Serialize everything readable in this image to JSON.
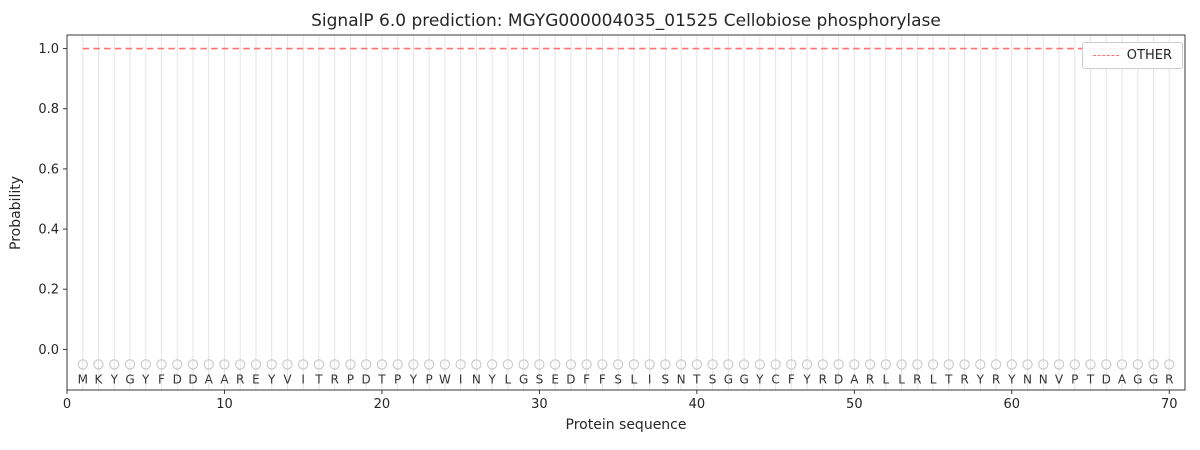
{
  "chart_data": {
    "type": "line",
    "title": "SignalP 6.0 prediction: MGYG000004035_01525 Cellobiose phosphorylase",
    "xlabel": "Protein sequence",
    "ylabel": "Probability",
    "xlim": [
      0,
      71
    ],
    "ylim": [
      -0.135,
      1.045
    ],
    "xticks": [
      {
        "v": 0,
        "label": "0"
      },
      {
        "v": 10,
        "label": "10"
      },
      {
        "v": 20,
        "label": "20"
      },
      {
        "v": 30,
        "label": "30"
      },
      {
        "v": 40,
        "label": "40"
      },
      {
        "v": 50,
        "label": "50"
      },
      {
        "v": 60,
        "label": "60"
      },
      {
        "v": 70,
        "label": "70"
      }
    ],
    "yticks": [
      {
        "v": 0.0,
        "label": "0.0"
      },
      {
        "v": 0.2,
        "label": "0.2"
      },
      {
        "v": 0.4,
        "label": "0.4"
      },
      {
        "v": 0.6,
        "label": "0.6"
      },
      {
        "v": 0.8,
        "label": "0.8"
      },
      {
        "v": 1.0,
        "label": "1.0"
      }
    ],
    "grid": "vertical gridline at each residue position",
    "legend_position": "upper right",
    "series": [
      {
        "name": "OTHER",
        "color": "#ff7272",
        "line_style": "dashed",
        "x_start": 1,
        "x_end": 70,
        "y_constant": 1.0
      }
    ],
    "sequence": "MKYGYFDDAAREYVITRPDTPYPWINYLGSEDFFSLISNTSGGYCFYRDARLLRLTRYRYNNVPTDAGGR",
    "sequence_marker": {
      "shape": "open-circle",
      "y": -0.05,
      "color": "#c9c9c9"
    },
    "sequence_letter_y": -0.1,
    "colors": {
      "grid": "#e5e5e5",
      "spine": "#3a3a3a",
      "tick_text": "#262626",
      "letters": "#333333"
    }
  }
}
